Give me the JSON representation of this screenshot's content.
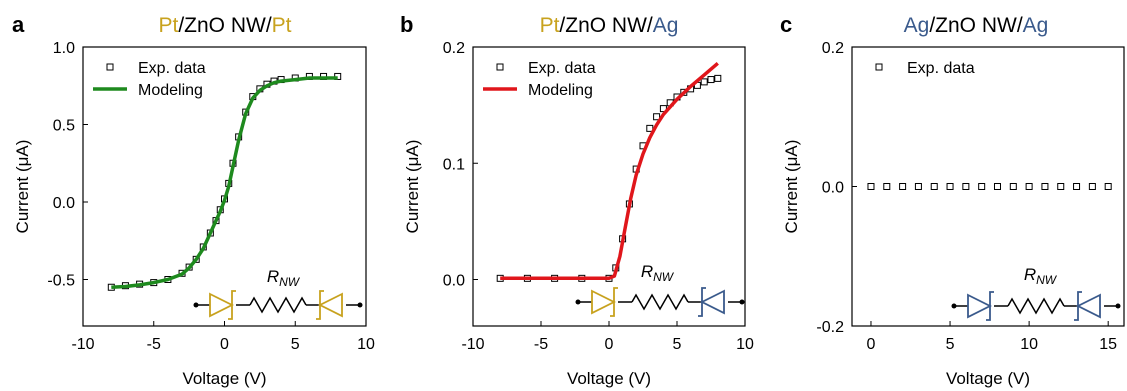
{
  "colors": {
    "gold": "#c8a21e",
    "blue": "#3a5a8c",
    "green": "#1e8a1e",
    "red": "#e0161b",
    "black": "#000000"
  },
  "panels": [
    {
      "letter": "a",
      "title_parts": [
        {
          "text": "Pt",
          "color": "gold"
        },
        {
          "text": "/ZnO NW/",
          "color": "black"
        },
        {
          "text": "Pt",
          "color": "gold"
        }
      ],
      "circuit": {
        "label": "R",
        "sub": "NW",
        "left": "gold-forward",
        "right": "gold-reverse"
      }
    },
    {
      "letter": "b",
      "title_parts": [
        {
          "text": "Pt",
          "color": "gold"
        },
        {
          "text": "/ZnO NW/",
          "color": "black"
        },
        {
          "text": "Ag",
          "color": "blue"
        }
      ],
      "circuit": {
        "label": "R",
        "sub": "NW",
        "left": "gold-forward",
        "right": "blue-reverse"
      }
    },
    {
      "letter": "c",
      "title_parts": [
        {
          "text": "Ag",
          "color": "blue"
        },
        {
          "text": "/ZnO NW/",
          "color": "black"
        },
        {
          "text": "Ag",
          "color": "blue"
        }
      ],
      "circuit": {
        "label": "R",
        "sub": "NW",
        "left": "blue-forward",
        "right": "blue-reverse"
      }
    }
  ],
  "chart_data": [
    {
      "type": "scatter",
      "xlabel": "Voltage (V)",
      "ylabel": "Current (μA)",
      "xlim": [
        -10,
        10
      ],
      "ylim": [
        -0.8,
        1.0
      ],
      "xticks": [
        -10,
        -5,
        0,
        5,
        10
      ],
      "yticks": [
        -0.5,
        0.0,
        0.5,
        1.0
      ],
      "ytick_labels": [
        "-0.5",
        "0.0",
        "0.5",
        "1.0"
      ],
      "legend": {
        "position": "top-left",
        "entries": [
          "Exp. data",
          "Modeling"
        ]
      },
      "series": [
        {
          "name": "Exp. data",
          "marker": "open-square",
          "color": "black",
          "x": [
            -8,
            -7,
            -6,
            -5,
            -4,
            -3,
            -2.5,
            -2,
            -1.5,
            -1,
            -0.6,
            -0.3,
            0,
            0.3,
            0.6,
            1,
            1.5,
            2,
            2.5,
            3,
            3.5,
            4,
            5,
            6,
            7,
            8
          ],
          "y": [
            -0.55,
            -0.54,
            -0.53,
            -0.52,
            -0.5,
            -0.46,
            -0.42,
            -0.37,
            -0.29,
            -0.2,
            -0.12,
            -0.05,
            0.02,
            0.12,
            0.25,
            0.42,
            0.58,
            0.68,
            0.73,
            0.76,
            0.78,
            0.79,
            0.8,
            0.81,
            0.81,
            0.81
          ]
        },
        {
          "name": "Modeling",
          "marker": "line",
          "color": "green",
          "x": [
            -8,
            -7,
            -6,
            -5,
            -4,
            -3,
            -2.5,
            -2,
            -1.5,
            -1,
            -0.6,
            -0.3,
            0,
            0.3,
            0.6,
            1,
            1.5,
            2,
            2.5,
            3,
            3.5,
            4,
            5,
            6,
            7,
            8
          ],
          "y": [
            -0.55,
            -0.545,
            -0.535,
            -0.52,
            -0.5,
            -0.465,
            -0.425,
            -0.37,
            -0.3,
            -0.2,
            -0.12,
            -0.06,
            0.01,
            0.1,
            0.23,
            0.4,
            0.57,
            0.67,
            0.72,
            0.75,
            0.77,
            0.78,
            0.79,
            0.8,
            0.8,
            0.8
          ]
        }
      ]
    },
    {
      "type": "scatter",
      "xlabel": "Voltage (V)",
      "ylabel": "Current (μA)",
      "xlim": [
        -10,
        10
      ],
      "ylim": [
        -0.04,
        0.2
      ],
      "xticks": [
        -10,
        -5,
        0,
        5,
        10
      ],
      "yticks": [
        0.0,
        0.1,
        0.2
      ],
      "ytick_labels": [
        "0.0",
        "0.1",
        "0.2"
      ],
      "legend": {
        "position": "top-left",
        "entries": [
          "Exp. data",
          "Modeling"
        ]
      },
      "series": [
        {
          "name": "Exp. data",
          "marker": "open-square",
          "color": "black",
          "x": [
            -8,
            -6,
            -4,
            -2,
            0,
            0.5,
            1,
            1.5,
            2,
            2.5,
            3,
            3.5,
            4,
            4.5,
            5,
            5.5,
            6,
            6.5,
            7,
            7.5,
            8
          ],
          "y": [
            0.001,
            0.001,
            0.001,
            0.001,
            0.001,
            0.01,
            0.035,
            0.065,
            0.095,
            0.115,
            0.13,
            0.14,
            0.147,
            0.152,
            0.157,
            0.161,
            0.164,
            0.167,
            0.17,
            0.172,
            0.173
          ]
        },
        {
          "name": "Modeling",
          "marker": "line",
          "color": "red",
          "x": [
            -8,
            -6,
            -4,
            -2,
            0,
            0.4,
            0.8,
            1.2,
            1.6,
            2,
            2.5,
            3,
            3.5,
            4,
            5,
            6,
            7,
            8
          ],
          "y": [
            0.001,
            0.001,
            0.001,
            0.001,
            0.001,
            0.003,
            0.02,
            0.045,
            0.07,
            0.09,
            0.108,
            0.122,
            0.133,
            0.142,
            0.155,
            0.166,
            0.176,
            0.186
          ]
        }
      ]
    },
    {
      "type": "scatter",
      "xlabel": "Voltage (V)",
      "ylabel": "Current (μA)",
      "xlim": [
        -1.2,
        16
      ],
      "ylim": [
        -0.2,
        0.2
      ],
      "xticks": [
        0,
        5,
        10,
        15
      ],
      "yticks": [
        -0.2,
        0.0,
        0.2
      ],
      "ytick_labels": [
        "-0.2",
        "0.0",
        "0.2"
      ],
      "legend": {
        "position": "top-left",
        "entries": [
          "Exp. data"
        ]
      },
      "series": [
        {
          "name": "Exp. data",
          "marker": "open-square",
          "color": "black",
          "x": [
            0,
            1,
            2,
            3,
            4,
            5,
            6,
            7,
            8,
            9,
            10,
            11,
            12,
            13,
            14,
            15
          ],
          "y": [
            0,
            0,
            0,
            0,
            0,
            0,
            0,
            0,
            0,
            0,
            0,
            0,
            0,
            0,
            0,
            0
          ]
        }
      ]
    }
  ]
}
